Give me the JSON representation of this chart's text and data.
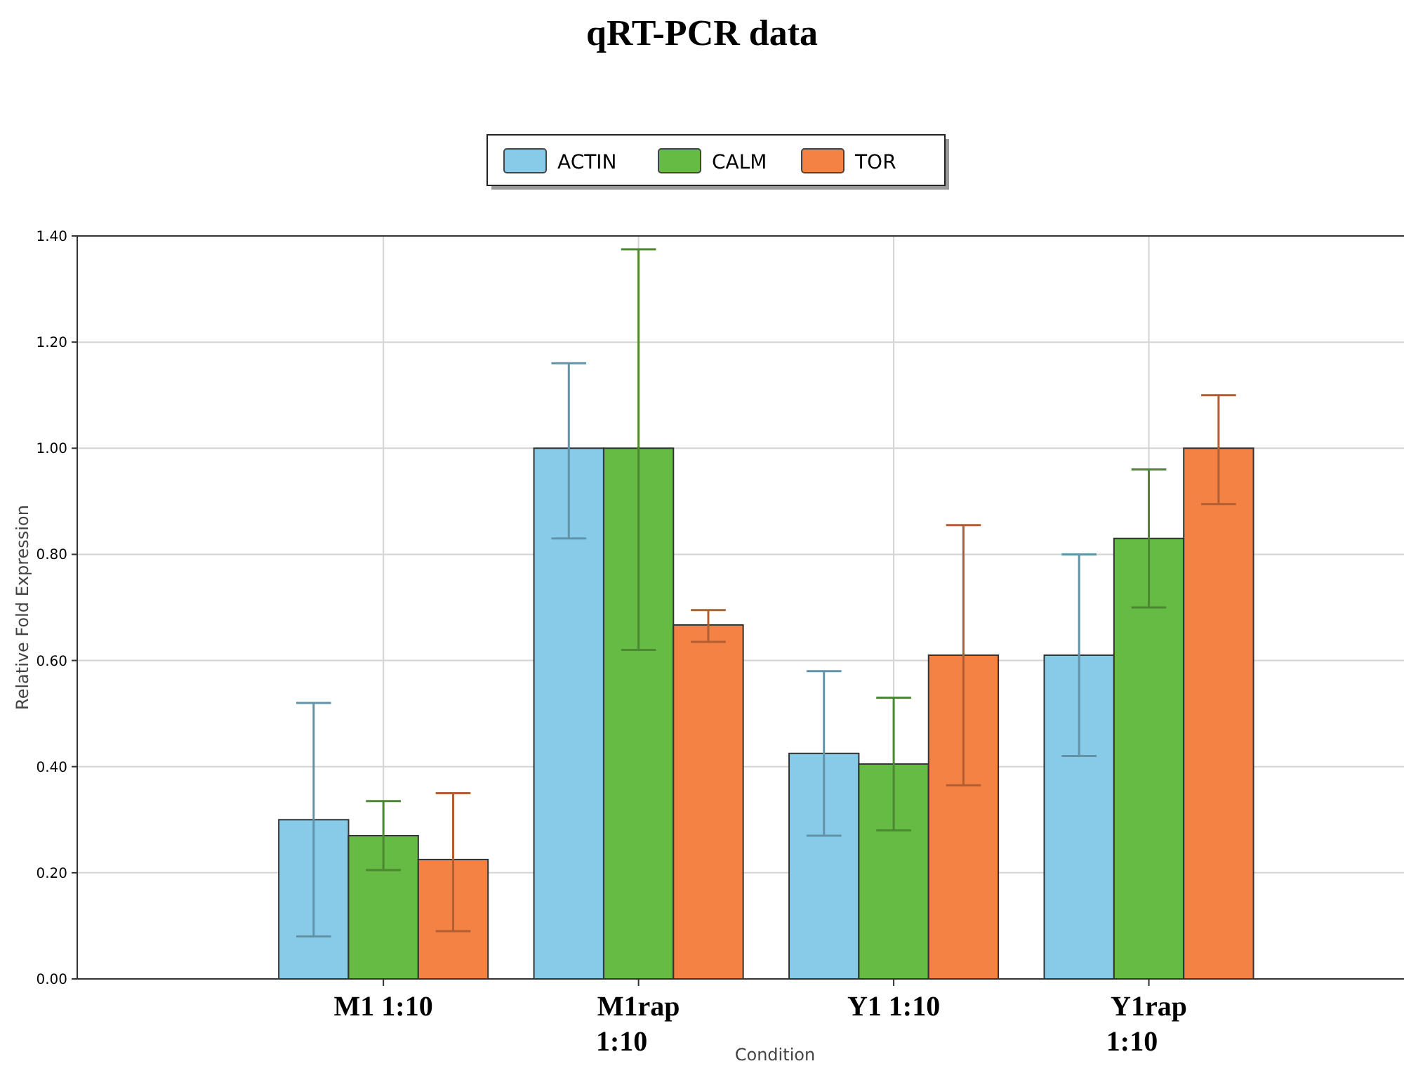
{
  "chart_data": {
    "type": "bar",
    "title": "qRT-PCR data",
    "xlabel": "Condition",
    "ylabel": "Relative Fold Expression",
    "categories": [
      "M1 1:10",
      "M1rap 1:10",
      "Y1 1:10",
      "Y1rap 1:10"
    ],
    "series": [
      {
        "name": "ACTIN",
        "color": "#87cbe8",
        "values": [
          0.3,
          1.0,
          0.425,
          0.61
        ],
        "errors": [
          [
            0.08,
            0.52
          ],
          [
            0.83,
            1.16
          ],
          [
            0.27,
            0.58
          ],
          [
            0.42,
            0.8
          ]
        ]
      },
      {
        "name": "CALM",
        "color": "#66bb44",
        "values": [
          0.27,
          1.0,
          0.405,
          0.83
        ],
        "errors": [
          [
            0.205,
            0.335
          ],
          [
            0.62,
            1.375
          ],
          [
            0.28,
            0.53
          ],
          [
            0.7,
            0.96
          ]
        ]
      },
      {
        "name": "TOR",
        "color": "#f48245",
        "values": [
          0.225,
          0.667,
          0.61,
          1.0
        ],
        "errors": [
          [
            0.09,
            0.35
          ],
          [
            0.635,
            0.695
          ],
          [
            0.365,
            0.855
          ],
          [
            0.895,
            1.1
          ]
        ]
      }
    ],
    "ylim": [
      0,
      1.4
    ],
    "yticks": [
      {
        "value": 0,
        "label": "0.00"
      },
      {
        "value": 0.2,
        "label": "0.20"
      },
      {
        "value": 0.4,
        "label": "0.40"
      },
      {
        "value": 0.6,
        "label": "0.60"
      },
      {
        "value": 0.8,
        "label": "0.80"
      },
      {
        "value": 1.0,
        "label": "1.00"
      },
      {
        "value": 1.2,
        "label": "1.20"
      },
      {
        "value": 1.4,
        "label": "1.40"
      }
    ],
    "grid": true,
    "legend": "top"
  }
}
